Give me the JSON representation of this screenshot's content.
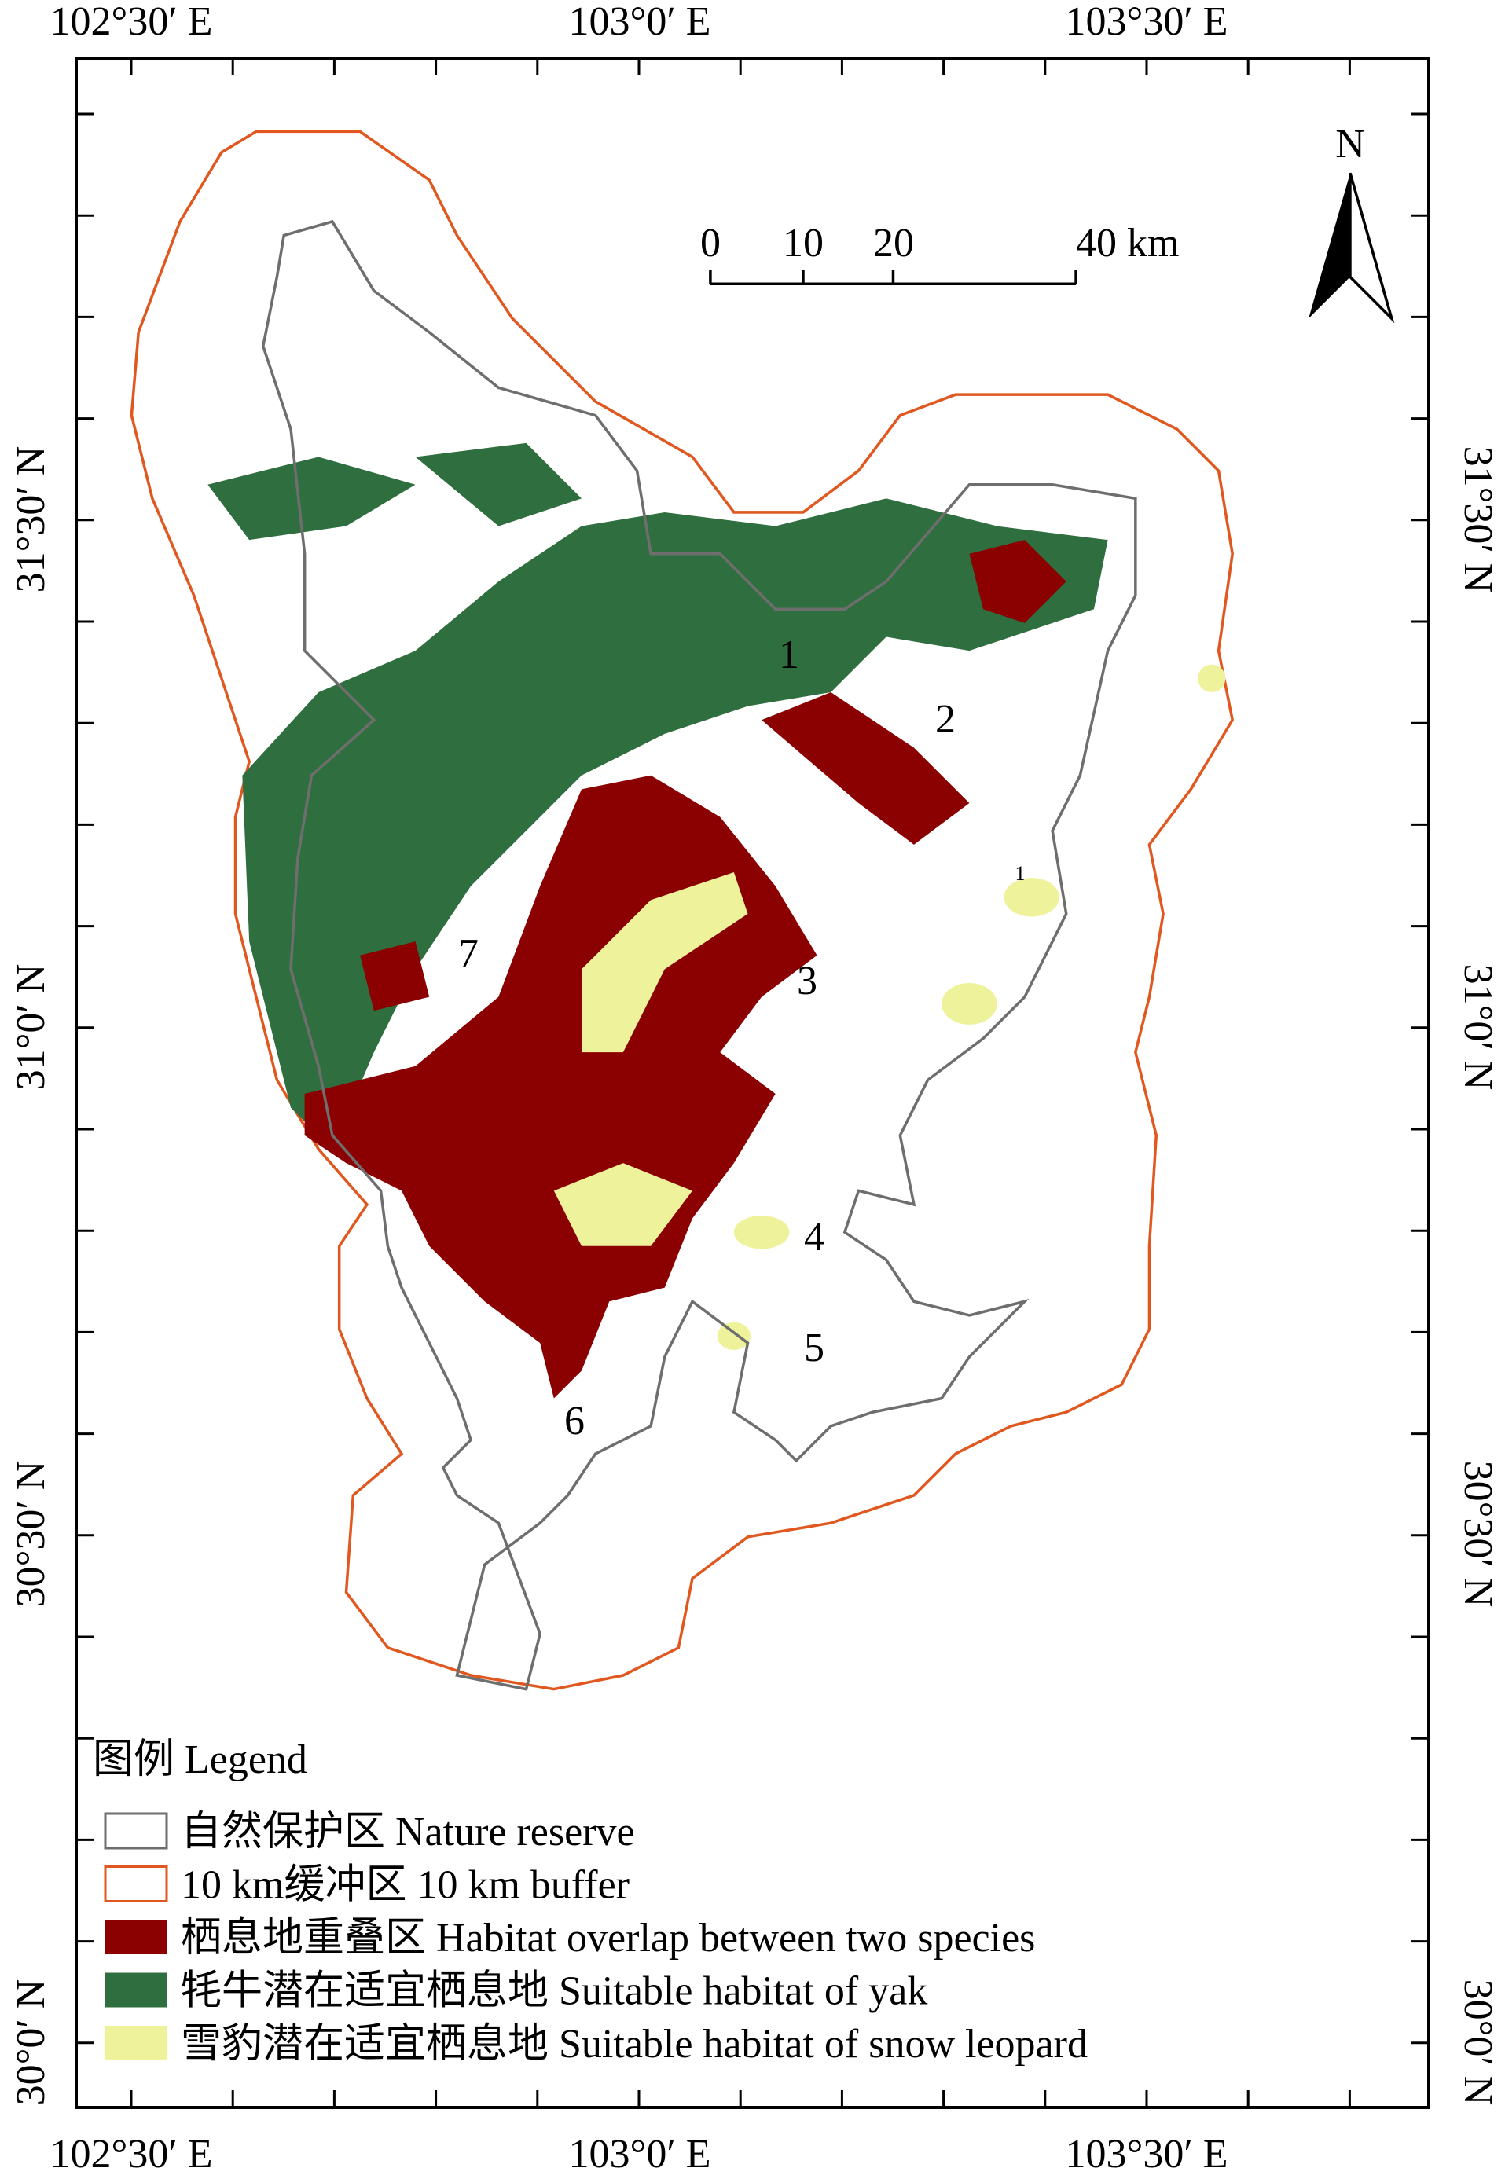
{
  "axes": {
    "top": [
      "102°30′ E",
      "103°0′ E",
      "103°30′ E"
    ],
    "bottom": [
      "102°30′ E",
      "103°0′ E",
      "103°30′ E"
    ],
    "left": [
      "31°30′ N",
      "31°0′ N",
      "30°30′ N",
      "30°0′ N"
    ],
    "right": [
      "31°30′ N",
      "31°0′ N",
      "30°30′ N",
      "30°0′ N"
    ]
  },
  "north": "N",
  "scale_bar": [
    "0",
    "10",
    "20",
    "40 km"
  ],
  "regions": [
    "1",
    "2",
    "3",
    "4",
    "5",
    "6",
    "7",
    "1"
  ],
  "legend": {
    "title": "图例 Legend",
    "items": [
      {
        "label": "自然保护区 Nature reserve",
        "color": "#6e6e6e",
        "swatch": "outline"
      },
      {
        "label": "10 km缓冲区 10 km buffer",
        "color": "#e0581f",
        "swatch": "outline"
      },
      {
        "label": "栖息地重叠区 Habitat overlap between two species",
        "color": "#8b0000",
        "swatch": "fill"
      },
      {
        "label": "牦牛潜在适宜栖息地 Suitable habitat of yak",
        "color": "#2f6e3e",
        "swatch": "fill"
      },
      {
        "label": "雪豹潜在适宜栖息地 Suitable habitat of snow leopard",
        "color": "#eef29a",
        "swatch": "fill"
      }
    ]
  }
}
